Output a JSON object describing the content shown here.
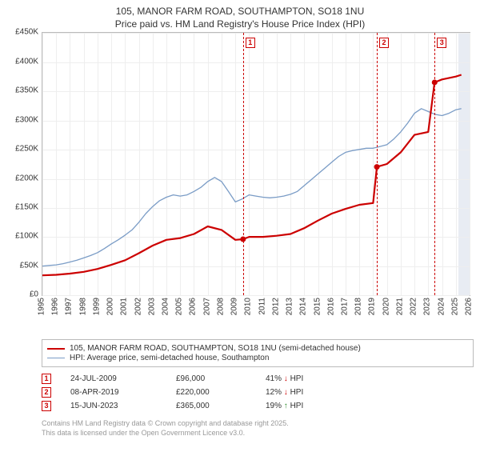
{
  "title_line1": "105, MANOR FARM ROAD, SOUTHAMPTON, SO18 1NU",
  "title_line2": "Price paid vs. HM Land Registry's House Price Index (HPI)",
  "chart": {
    "type": "line",
    "x_domain": [
      1995,
      2026
    ],
    "y_domain": [
      0,
      450000
    ],
    "y_ticks": [
      0,
      50000,
      100000,
      150000,
      200000,
      250000,
      300000,
      350000,
      400000,
      450000
    ],
    "y_tick_labels": [
      "£0",
      "£50K",
      "£100K",
      "£150K",
      "£200K",
      "£250K",
      "£300K",
      "£350K",
      "£400K",
      "£450K"
    ],
    "x_ticks": [
      1995,
      1996,
      1997,
      1998,
      1999,
      2000,
      2001,
      2002,
      2003,
      2004,
      2005,
      2006,
      2007,
      2008,
      2009,
      2010,
      2011,
      2012,
      2013,
      2014,
      2015,
      2016,
      2017,
      2018,
      2019,
      2020,
      2021,
      2022,
      2023,
      2024,
      2025,
      2026
    ],
    "grid_color": "#eeeeee",
    "axis_color": "#bbbbbb",
    "background_color": "#ffffff",
    "shade_band": {
      "from": 2025.2,
      "to": 2026,
      "color": "#e8ecf3"
    },
    "series": [
      {
        "name": "price_paid",
        "label": "105, MANOR FARM ROAD, SOUTHAMPTON, SO18 1NU (semi-detached house)",
        "color": "#cc0000",
        "width": 2.2,
        "points": [
          [
            1995.0,
            34000
          ],
          [
            1996,
            35000
          ],
          [
            1997,
            37000
          ],
          [
            1998,
            40000
          ],
          [
            1999,
            45000
          ],
          [
            2000,
            52000
          ],
          [
            2001,
            60000
          ],
          [
            2002,
            72000
          ],
          [
            2003,
            85000
          ],
          [
            2004,
            95000
          ],
          [
            2005,
            98000
          ],
          [
            2006,
            105000
          ],
          [
            2007,
            118000
          ],
          [
            2008,
            112000
          ],
          [
            2009,
            95000
          ],
          [
            2009.56,
            96000
          ],
          [
            2010,
            100000
          ],
          [
            2011,
            100000
          ],
          [
            2012,
            102000
          ],
          [
            2013,
            105000
          ],
          [
            2014,
            115000
          ],
          [
            2015,
            128000
          ],
          [
            2016,
            140000
          ],
          [
            2017,
            148000
          ],
          [
            2018,
            155000
          ],
          [
            2019,
            158000
          ],
          [
            2019.27,
            220000
          ],
          [
            2020,
            225000
          ],
          [
            2021,
            245000
          ],
          [
            2022,
            275000
          ],
          [
            2023,
            280000
          ],
          [
            2023.46,
            365000
          ],
          [
            2024,
            370000
          ],
          [
            2025,
            375000
          ],
          [
            2025.4,
            378000
          ]
        ],
        "markers": [
          {
            "x": 2009.56,
            "y": 96000
          },
          {
            "x": 2019.27,
            "y": 220000
          },
          {
            "x": 2023.46,
            "y": 365000
          }
        ]
      },
      {
        "name": "hpi",
        "label": "HPI: Average price, semi-detached house, Southampton",
        "color": "#7a9cc6",
        "width": 1.3,
        "points": [
          [
            1995.0,
            50000
          ],
          [
            1995.5,
            51000
          ],
          [
            1996,
            52000
          ],
          [
            1996.5,
            54000
          ],
          [
            1997,
            57000
          ],
          [
            1997.5,
            60000
          ],
          [
            1998,
            64000
          ],
          [
            1998.5,
            68000
          ],
          [
            1999,
            73000
          ],
          [
            1999.5,
            80000
          ],
          [
            2000,
            88000
          ],
          [
            2000.5,
            95000
          ],
          [
            2001,
            103000
          ],
          [
            2001.5,
            112000
          ],
          [
            2002,
            125000
          ],
          [
            2002.5,
            140000
          ],
          [
            2003,
            152000
          ],
          [
            2003.5,
            162000
          ],
          [
            2004,
            168000
          ],
          [
            2004.5,
            172000
          ],
          [
            2005,
            170000
          ],
          [
            2005.5,
            172000
          ],
          [
            2006,
            178000
          ],
          [
            2006.5,
            185000
          ],
          [
            2007,
            195000
          ],
          [
            2007.5,
            202000
          ],
          [
            2008,
            195000
          ],
          [
            2008.5,
            178000
          ],
          [
            2009,
            160000
          ],
          [
            2009.5,
            165000
          ],
          [
            2010,
            172000
          ],
          [
            2010.5,
            170000
          ],
          [
            2011,
            168000
          ],
          [
            2011.5,
            167000
          ],
          [
            2012,
            168000
          ],
          [
            2012.5,
            170000
          ],
          [
            2013,
            173000
          ],
          [
            2013.5,
            178000
          ],
          [
            2014,
            188000
          ],
          [
            2014.5,
            198000
          ],
          [
            2015,
            208000
          ],
          [
            2015.5,
            218000
          ],
          [
            2016,
            228000
          ],
          [
            2016.5,
            238000
          ],
          [
            2017,
            245000
          ],
          [
            2017.5,
            248000
          ],
          [
            2018,
            250000
          ],
          [
            2018.5,
            252000
          ],
          [
            2019,
            252000
          ],
          [
            2019.5,
            255000
          ],
          [
            2020,
            258000
          ],
          [
            2020.5,
            268000
          ],
          [
            2021,
            280000
          ],
          [
            2021.5,
            295000
          ],
          [
            2022,
            312000
          ],
          [
            2022.5,
            320000
          ],
          [
            2023,
            315000
          ],
          [
            2023.5,
            310000
          ],
          [
            2024,
            308000
          ],
          [
            2024.5,
            312000
          ],
          [
            2025,
            318000
          ],
          [
            2025.4,
            320000
          ]
        ]
      }
    ],
    "events": [
      {
        "num": "1",
        "x": 2009.56,
        "date": "24-JUL-2009",
        "price": "£96,000",
        "delta": "41% ↓ HPI",
        "arrow_color": "#cc0000"
      },
      {
        "num": "2",
        "x": 2019.27,
        "date": "08-APR-2019",
        "price": "£220,000",
        "delta": "12% ↓ HPI",
        "arrow_color": "#cc0000"
      },
      {
        "num": "3",
        "x": 2023.46,
        "date": "15-JUN-2023",
        "price": "£365,000",
        "delta": "19% ↑ HPI",
        "arrow_color": "#2e8b2e"
      }
    ]
  },
  "attribution_line1": "Contains HM Land Registry data © Crown copyright and database right 2025.",
  "attribution_line2": "This data is licensed under the Open Government Licence v3.0."
}
